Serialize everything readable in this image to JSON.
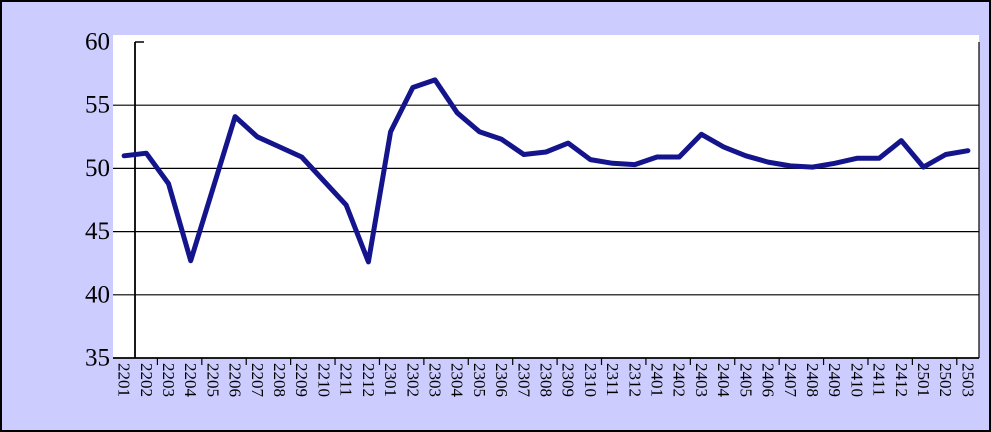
{
  "chart_data": {
    "type": "line",
    "title": "",
    "xlabel": "",
    "ylabel": "",
    "categories": [
      "2201",
      "2202",
      "2203",
      "2204",
      "2205",
      "2206",
      "2207",
      "2208",
      "2209",
      "2210",
      "2211",
      "2212",
      "2301",
      "2302",
      "2303",
      "2304",
      "2305",
      "2306",
      "2307",
      "2308",
      "2309",
      "2310",
      "2311",
      "2312",
      "2401",
      "2402",
      "2403",
      "2404",
      "2405",
      "2406",
      "2407",
      "2408",
      "2409",
      "2410",
      "2411",
      "2412",
      "2501",
      "2502",
      "2503"
    ],
    "series": [
      {
        "name": "",
        "values": [
          51.0,
          51.2,
          48.8,
          42.7,
          48.4,
          54.1,
          52.5,
          51.7,
          50.9,
          49.0,
          47.1,
          42.6,
          52.9,
          56.4,
          57.0,
          54.4,
          52.9,
          52.3,
          51.1,
          51.3,
          52.0,
          50.7,
          50.4,
          50.3,
          50.9,
          50.9,
          52.7,
          51.7,
          51.0,
          50.5,
          50.2,
          50.1,
          50.4,
          50.8,
          50.8,
          52.2,
          50.1,
          51.1,
          51.4
        ]
      }
    ],
    "ylim": [
      35,
      60
    ],
    "yticks": [
      35,
      40,
      45,
      50,
      55,
      60
    ],
    "grid": "horizontal-major",
    "legend": "none",
    "x_tick_interval": 2,
    "x_label_rotation_deg": 90
  },
  "colors": {
    "chart_background": "#CCCCFF",
    "plot_background": "#FFFFFF",
    "series_line": "#14148C",
    "axis": "#000000",
    "tick_label": "#000000"
  }
}
